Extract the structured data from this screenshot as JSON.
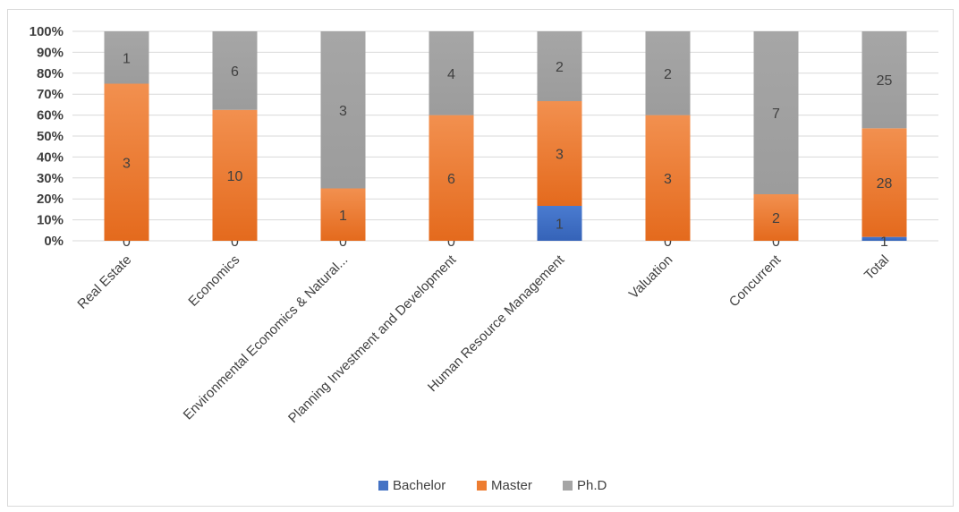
{
  "chart_data": {
    "type": "bar",
    "stacked": "percent",
    "title": "",
    "xlabel": "",
    "ylabel": "",
    "ylim": [
      0,
      100
    ],
    "y_ticks": [
      "0%",
      "10%",
      "20%",
      "30%",
      "40%",
      "50%",
      "60%",
      "70%",
      "80%",
      "90%",
      "100%"
    ],
    "grid": true,
    "legend_position": "bottom",
    "categories": [
      "Real Estate",
      "Economics",
      "Environmental Economics & Natural...",
      "Planning Investment and Development",
      "Human Resource Management",
      "Valuation",
      "Concurrent",
      "Total"
    ],
    "series": [
      {
        "name": "Bachelor",
        "color": "#4472c4",
        "values": [
          0,
          0,
          0,
          0,
          1,
          0,
          0,
          1
        ]
      },
      {
        "name": "Master",
        "color": "#ed7d31",
        "values": [
          3,
          10,
          1,
          6,
          3,
          3,
          2,
          28
        ]
      },
      {
        "name": "Ph.D",
        "color": "#a5a5a5",
        "values": [
          1,
          6,
          3,
          4,
          2,
          2,
          7,
          25
        ]
      }
    ]
  }
}
